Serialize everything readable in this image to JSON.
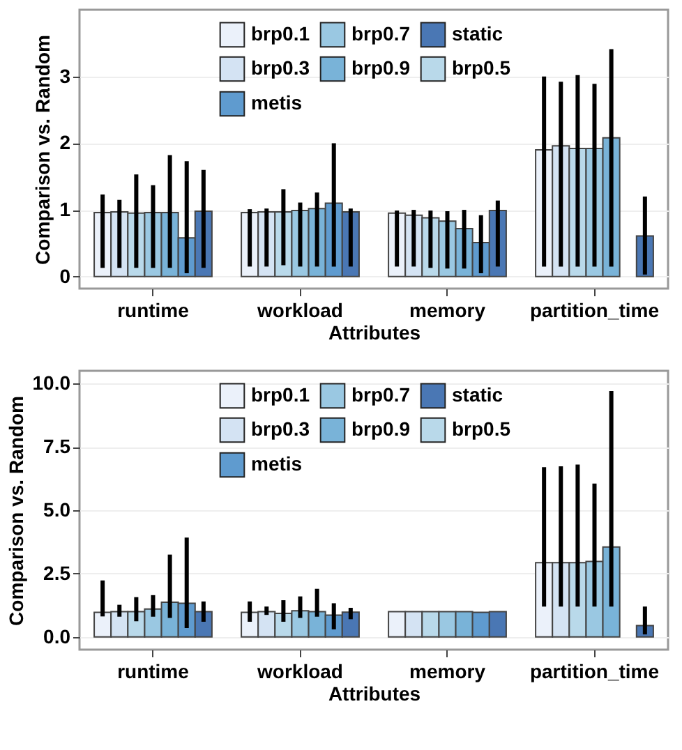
{
  "chart_data": [
    {
      "type": "bar",
      "xlabel": "Attributes",
      "ylabel": "Comparison vs. Random",
      "categories": [
        "runtime",
        "workload",
        "memory",
        "partition_time"
      ],
      "ylim": [
        -0.18,
        4.0
      ],
      "yticks": [
        0,
        1,
        2,
        3
      ],
      "grid": "y",
      "legend": "top left",
      "series": [
        {
          "name": "brp0.1",
          "color": "#ebf1fa",
          "values": [
            0.96,
            0.96,
            0.95,
            1.9
          ],
          "errors": [
            [
              0.13,
              1.23
            ],
            [
              0.15,
              1.01
            ],
            [
              0.15,
              0.99
            ],
            [
              0.15,
              3.0
            ]
          ]
        },
        {
          "name": "brp0.3",
          "color": "#d4e3f3",
          "values": [
            0.97,
            0.97,
            0.92,
            1.96
          ],
          "errors": [
            [
              0.13,
              1.15
            ],
            [
              0.15,
              1.02
            ],
            [
              0.15,
              1.0
            ],
            [
              0.15,
              2.92
            ]
          ]
        },
        {
          "name": "brp0.5",
          "color": "#b9d9ea",
          "values": [
            0.95,
            0.97,
            0.88,
            1.92
          ],
          "errors": [
            [
              0.13,
              1.53
            ],
            [
              0.17,
              1.31
            ],
            [
              0.13,
              0.99
            ],
            [
              0.15,
              3.02
            ]
          ]
        },
        {
          "name": "brp0.7",
          "color": "#9ac8e2",
          "values": [
            0.96,
            0.99,
            0.83,
            1.92
          ],
          "errors": [
            [
              0.13,
              1.37
            ],
            [
              0.15,
              1.11
            ],
            [
              0.12,
              0.98
            ],
            [
              0.15,
              2.89
            ]
          ]
        },
        {
          "name": "brp0.9",
          "color": "#79b3d8",
          "values": [
            0.96,
            1.02,
            0.72,
            2.08
          ],
          "errors": [
            [
              0.13,
              1.82
            ],
            [
              0.15,
              1.26
            ],
            [
              0.12,
              1.0
            ],
            [
              0.15,
              3.41
            ]
          ]
        },
        {
          "name": "metis",
          "color": "#5f9bcf",
          "values": [
            0.58,
            1.1,
            0.51,
            null
          ],
          "errors": [
            [
              0.05,
              1.73
            ],
            [
              0.15,
              2.0
            ],
            [
              0.05,
              0.92
            ],
            null
          ]
        },
        {
          "name": "static",
          "color": "#4a77b4",
          "values": [
            0.98,
            0.97,
            0.99,
            0.61
          ],
          "errors": [
            [
              0.13,
              1.6
            ],
            [
              0.15,
              1.02
            ],
            [
              0.15,
              1.14
            ],
            [
              0.03,
              1.2
            ]
          ]
        }
      ]
    },
    {
      "type": "bar",
      "xlabel": "Attributes",
      "ylabel": "Comparison vs. Random",
      "categories": [
        "runtime",
        "workload",
        "memory",
        "partition_time"
      ],
      "ylim": [
        -0.5,
        10.5
      ],
      "yticks": [
        {
          "value": 0,
          "label": "0.0"
        },
        {
          "value": 2.5,
          "label": "2.5"
        },
        {
          "value": 5,
          "label": "5.0"
        },
        {
          "value": 7.5,
          "label": "7.5"
        },
        {
          "value": 10,
          "label": "10.0"
        }
      ],
      "grid": "y",
      "legend": "top left",
      "series": [
        {
          "name": "brp0.1",
          "color": "#ebf1fa",
          "values": [
            0.97,
            0.97,
            1.0,
            2.93
          ],
          "errors": [
            [
              0.81,
              2.23
            ],
            [
              0.6,
              1.4
            ],
            null,
            [
              1.2,
              6.7
            ]
          ]
        },
        {
          "name": "brp0.3",
          "color": "#d4e3f3",
          "values": [
            1.0,
            1.0,
            1.0,
            2.93
          ],
          "errors": [
            [
              0.8,
              1.27
            ],
            [
              0.87,
              1.2
            ],
            null,
            [
              1.2,
              6.73
            ]
          ]
        },
        {
          "name": "brp0.5",
          "color": "#b9d9ea",
          "values": [
            1.0,
            0.93,
            1.0,
            2.93
          ],
          "errors": [
            [
              0.62,
              1.57
            ],
            [
              0.6,
              1.45
            ],
            null,
            [
              1.2,
              6.8
            ]
          ]
        },
        {
          "name": "brp0.7",
          "color": "#9ac8e2",
          "values": [
            1.1,
            1.03,
            1.0,
            2.98
          ],
          "errors": [
            [
              0.8,
              1.65
            ],
            [
              0.75,
              1.6
            ],
            null,
            [
              1.2,
              6.05
            ]
          ]
        },
        {
          "name": "brp0.9",
          "color": "#79b3d8",
          "values": [
            1.37,
            1.0,
            1.0,
            3.55
          ],
          "errors": [
            [
              0.75,
              3.25
            ],
            [
              0.8,
              1.9
            ],
            null,
            [
              1.2,
              9.7
            ]
          ]
        },
        {
          "name": "metis",
          "color": "#5f9bcf",
          "values": [
            1.33,
            0.86,
            0.97,
            null
          ],
          "errors": [
            [
              0.35,
              3.92
            ],
            [
              0.3,
              1.33
            ],
            null,
            null
          ]
        },
        {
          "name": "static",
          "color": "#4a77b4",
          "values": [
            1.0,
            0.98,
            1.0,
            0.45
          ],
          "errors": [
            [
              0.6,
              1.4
            ],
            [
              0.7,
              1.15
            ],
            null,
            [
              0.1,
              1.2
            ]
          ]
        }
      ]
    }
  ]
}
